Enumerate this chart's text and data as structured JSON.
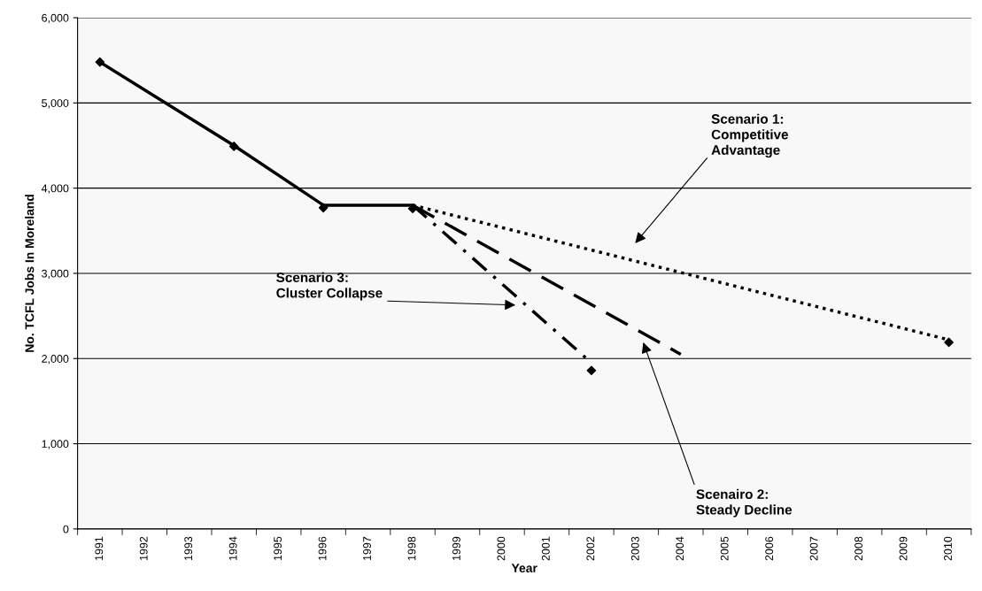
{
  "chart_data": {
    "type": "line",
    "xlabel": "Year",
    "ylabel": "No. TCFL Jobs In Moreland",
    "categories": [
      "1991",
      "1992",
      "1993",
      "1994",
      "1995",
      "1996",
      "1997",
      "1998",
      "1999",
      "2000",
      "2001",
      "2002",
      "2003",
      "2004",
      "2005",
      "2006",
      "2007",
      "2008",
      "2009",
      "2010"
    ],
    "series": [
      {
        "color": "#000000",
        "line_style": "solid",
        "values": [
          5480,
          null,
          null,
          4500,
          null,
          3800,
          null,
          3800,
          null,
          null,
          null,
          null,
          null,
          null,
          null,
          null,
          null,
          null,
          null,
          null
        ]
      },
      {
        "color": "#000000",
        "line_style": "dotted",
        "values": [
          null,
          null,
          null,
          null,
          null,
          null,
          null,
          3800,
          null,
          null,
          null,
          null,
          null,
          null,
          null,
          null,
          null,
          null,
          null,
          2220
        ]
      },
      {
        "color": "#000000",
        "line_style": "dashed",
        "values": [
          null,
          null,
          null,
          null,
          null,
          null,
          null,
          3800,
          null,
          null,
          null,
          null,
          null,
          2050,
          null,
          null,
          null,
          null,
          null,
          null
        ]
      },
      {
        "color": "#000000",
        "line_style": "dashdot",
        "values": [
          null,
          null,
          null,
          null,
          null,
          null,
          null,
          3800,
          null,
          null,
          null,
          1950,
          null,
          null,
          null,
          null,
          null,
          null,
          null,
          null
        ]
      },
      {
        "type": "scatter",
        "color": "#000000",
        "marker": "diamond",
        "values": [
          5480,
          null,
          null,
          4490,
          null,
          3770,
          null,
          3760,
          null,
          null,
          null,
          1860,
          null,
          null,
          null,
          null,
          null,
          null,
          null,
          2190
        ]
      }
    ],
    "ylim": [
      0,
      6000
    ],
    "yticks": [
      {
        "value": 0,
        "label": "0"
      },
      {
        "value": 1000,
        "label": "1,000"
      },
      {
        "value": 2000,
        "label": "2,000"
      },
      {
        "value": 3000,
        "label": "3,000"
      },
      {
        "value": 4000,
        "label": "4,000"
      },
      {
        "value": 5000,
        "label": "5,000"
      },
      {
        "value": 6000,
        "label": "6,000"
      }
    ],
    "grid": "y",
    "legend": false,
    "annotations": [
      "Scenario 1:\nCompetitive\nAdvantage",
      "Scenairo 2:\nSteady Decline",
      "Scenario 3:\nCluster Collapse"
    ]
  }
}
